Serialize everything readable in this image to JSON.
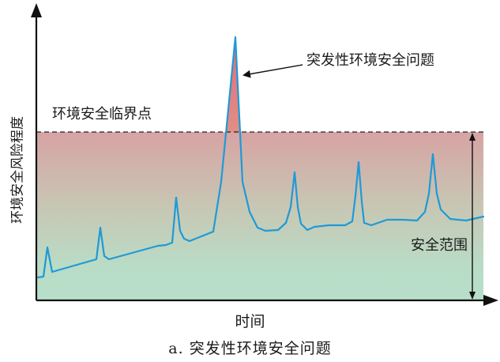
{
  "chart_data": {
    "type": "line",
    "xlabel": "时间",
    "ylabel": "环境安全风险程度",
    "caption": "a. 突发性环境安全问题",
    "threshold_label": "环境安全临界点",
    "peak_label": "突发性环境安全问题",
    "range_label": "安全范围",
    "grid": false,
    "legend": "none",
    "colors": {
      "line": "#1e9ad6",
      "axis": "#111111",
      "threshold_line": "#222222",
      "safe_fill": "#b7dfca",
      "danger_fill": "#d7a3a3",
      "peak_fill": "#e0727c"
    }
  }
}
